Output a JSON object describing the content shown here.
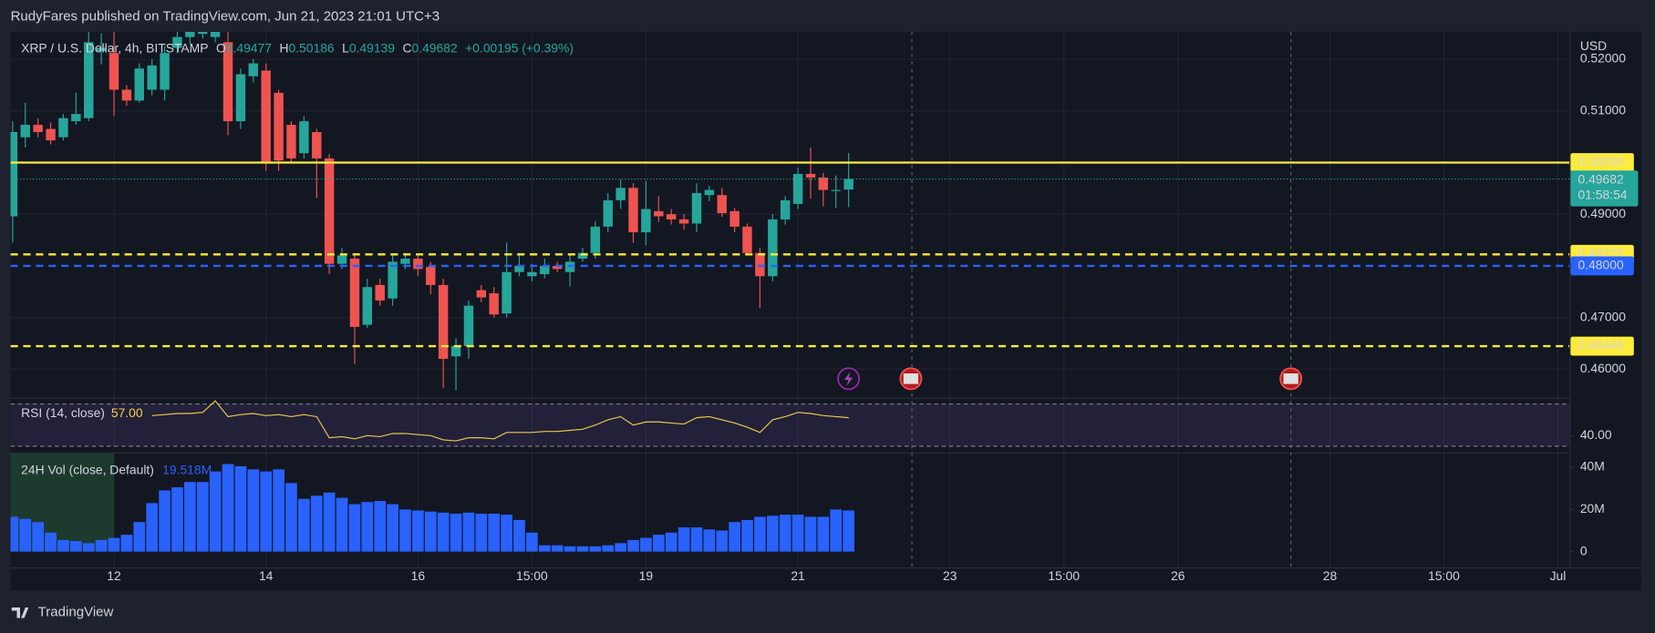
{
  "header": "RudyFares published on TradingView.com, Jun 21, 2023 21:01 UTC+3",
  "footer": "TradingView",
  "chart_data": {
    "type": "candlestick",
    "symbol": "XRP / U.S. Dollar, 4h, BITSTAMP",
    "ohlc_letters": [
      "O",
      "H",
      "L",
      "C"
    ],
    "change": "+0.00195 (+0.39%)",
    "currency": "USD",
    "countdown": "01:58:54",
    "grid": true,
    "up_color": "#26a69a",
    "down_color": "#ef5350",
    "x": [
      10.667,
      10.833,
      11,
      11.167,
      11.333,
      11.5,
      11.667,
      11.833,
      12,
      12.167,
      12.333,
      12.5,
      12.667,
      12.833,
      13,
      13.167,
      13.333,
      13.5,
      13.667,
      13.833,
      14,
      14.167,
      14.333,
      14.5,
      14.667,
      14.833,
      15,
      15.167,
      15.333,
      15.5,
      15.667,
      15.833,
      16,
      16.167,
      16.333,
      16.5,
      16.667,
      16.833,
      17,
      17.167,
      17.333,
      17.5,
      17.667,
      17.833,
      18,
      18.167,
      18.333,
      18.5,
      18.667,
      18.833,
      19,
      19.167,
      19.333,
      19.5,
      19.667,
      19.833,
      20,
      20.167,
      20.333,
      20.5,
      20.667,
      20.833,
      21,
      21.167,
      21.333,
      21.5,
      21.667
    ],
    "xlim": [
      10.639,
      31.153
    ],
    "xticks": [
      12,
      14,
      16,
      {
        "value": 17.5,
        "label": "15:00"
      },
      19,
      21,
      23,
      {
        "value": 24.5,
        "label": "15:00"
      },
      26,
      28,
      {
        "value": 29.5,
        "label": "15:00"
      },
      {
        "value": 31,
        "label": "Jul"
      }
    ],
    "open": [
      0.4896,
      0.5049,
      0.5073,
      0.5065,
      0.5049,
      0.508,
      0.5086,
      0.5216,
      0.5212,
      0.5141,
      0.512,
      0.5141,
      0.5141,
      0.5222,
      0.5243,
      0.5249,
      0.5243,
      0.5233,
      0.508,
      0.5167,
      0.5178,
      0.5135,
      0.5073,
      0.5018,
      0.5059,
      0.5008,
      0.4804,
      0.4814,
      0.4686,
      0.4763,
      0.4737,
      0.4804,
      0.4814,
      0.4798,
      0.4763,
      0.4625,
      0.4645,
      0.4753,
      0.4747,
      0.4708,
      0.4788,
      0.478,
      0.4784,
      0.48,
      0.4788,
      0.4814,
      0.4825,
      0.4876,
      0.4927,
      0.4951,
      0.4865,
      0.4906,
      0.49,
      0.489,
      0.4882,
      0.4937,
      0.4937,
      0.4906,
      0.4876,
      0.4825,
      0.478,
      0.489,
      0.492,
      0.4978,
      0.4971,
      0.4945,
      0.49477
    ],
    "high": [
      0.508,
      0.5116,
      0.5086,
      0.5078,
      0.5094,
      0.5135,
      0.5253,
      0.525,
      0.5253,
      0.515,
      0.5192,
      0.52,
      0.5225,
      0.5253,
      0.526,
      0.5265,
      0.5265,
      0.5253,
      0.5182,
      0.52,
      0.5192,
      0.5141,
      0.508,
      0.509,
      0.5065,
      0.5016,
      0.4835,
      0.4825,
      0.4775,
      0.4775,
      0.482,
      0.4825,
      0.482,
      0.4808,
      0.4775,
      0.466,
      0.4733,
      0.4763,
      0.4759,
      0.4845,
      0.4825,
      0.4804,
      0.4814,
      0.4808,
      0.482,
      0.4835,
      0.4886,
      0.4941,
      0.4967,
      0.496,
      0.4965,
      0.4935,
      0.491,
      0.49,
      0.496,
      0.4955,
      0.4951,
      0.4912,
      0.4882,
      0.4835,
      0.49,
      0.4935,
      0.499,
      0.5029,
      0.498,
      0.4975,
      0.50186
    ],
    "low": [
      0.4845,
      0.5029,
      0.5049,
      0.5035,
      0.5043,
      0.5073,
      0.508,
      0.519,
      0.509,
      0.511,
      0.5116,
      0.513,
      0.512,
      0.5212,
      0.523,
      0.524,
      0.5233,
      0.5053,
      0.5065,
      0.5155,
      0.4984,
      0.4984,
      0.5,
      0.5008,
      0.4931,
      0.4784,
      0.4794,
      0.461,
      0.468,
      0.4723,
      0.4723,
      0.4794,
      0.478,
      0.4745,
      0.4563,
      0.4559,
      0.462,
      0.473,
      0.47,
      0.47,
      0.478,
      0.477,
      0.4776,
      0.4788,
      0.476,
      0.4808,
      0.4814,
      0.4865,
      0.491,
      0.4845,
      0.484,
      0.4885,
      0.488,
      0.487,
      0.4865,
      0.4925,
      0.4895,
      0.4865,
      0.482,
      0.4718,
      0.477,
      0.488,
      0.491,
      0.493,
      0.4915,
      0.4912,
      0.49139
    ],
    "close": [
      0.5059,
      0.5073,
      0.5059,
      0.5043,
      0.5086,
      0.5094,
      0.5233,
      0.5222,
      0.5141,
      0.512,
      0.5182,
      0.5188,
      0.5212,
      0.5243,
      0.5253,
      0.5257,
      0.5253,
      0.508,
      0.5171,
      0.5192,
      0.4998,
      0.5004,
      0.5008,
      0.508,
      0.5008,
      0.4804,
      0.482,
      0.4682,
      0.4759,
      0.4733,
      0.4808,
      0.4814,
      0.4794,
      0.4763,
      0.462,
      0.4645,
      0.4723,
      0.4739,
      0.4706,
      0.4788,
      0.48,
      0.4788,
      0.48,
      0.4794,
      0.4808,
      0.4825,
      0.4876,
      0.4927,
      0.4951,
      0.4865,
      0.491,
      0.4896,
      0.489,
      0.4882,
      0.4941,
      0.4947,
      0.4902,
      0.4876,
      0.4825,
      0.478,
      0.489,
      0.4927,
      0.4978,
      0.4971,
      0.4947,
      0.4947,
      0.49682
    ],
    "ylim": [
      0.4549,
      0.5253
    ],
    "yticks": [
      {
        "value": 0.46,
        "label": "0.46000"
      },
      {
        "value": 0.47,
        "label": "0.47000"
      },
      {
        "value": 0.49,
        "label": "0.49000"
      },
      {
        "value": 0.51,
        "label": "0.51000"
      },
      {
        "value": 0.52,
        "label": "0.52000"
      }
    ],
    "price_lines": [
      {
        "value": 0.5,
        "label": "0.50000",
        "color": "#ffeb3b",
        "style": "solid"
      },
      {
        "value": 0.48222,
        "label": "0.48222",
        "color": "#ffeb3b",
        "style": "dashed"
      },
      {
        "value": 0.48,
        "label": "0.48000",
        "color": "#2962ff",
        "style": "dashed"
      },
      {
        "value": 0.46446,
        "label": "0.46446",
        "color": "#ffeb3b",
        "style": "dashed"
      }
    ],
    "rsi": {
      "name": "RSI (14, close)",
      "color": "#e9c94a",
      "value_label": "57.00",
      "values": [
        null,
        null,
        null,
        null,
        null,
        null,
        null,
        null,
        null,
        null,
        null,
        59,
        60,
        61,
        61,
        62,
        73,
        58,
        60,
        61,
        59,
        60,
        58,
        60,
        58,
        38,
        39,
        37,
        40,
        39,
        42,
        42,
        41,
        40,
        36,
        35,
        38,
        38,
        37,
        43,
        43,
        43,
        44,
        44,
        45,
        46,
        50,
        55,
        58,
        50,
        53,
        53,
        52,
        51,
        57,
        58,
        55,
        52,
        48,
        43,
        55,
        58,
        62,
        61,
        59,
        58,
        57
      ],
      "ylim": [
        25,
        75
      ],
      "yticks": [
        {
          "value": 40,
          "label": "40.00"
        }
      ],
      "bands": [
        70,
        30
      ]
    },
    "volume": {
      "name": "24H Vol (close, Default)",
      "color": "#2962ff",
      "value_label": "19.518M",
      "values": [
        16.5,
        15.5,
        14,
        9,
        5.5,
        5,
        4,
        5.5,
        6.5,
        8,
        14,
        23,
        29,
        30.5,
        33,
        33,
        38,
        41.5,
        40.5,
        39,
        38,
        39,
        32.5,
        25,
        26.5,
        28,
        25.5,
        22.5,
        23.5,
        24,
        22.5,
        20,
        19.5,
        19,
        18.5,
        18,
        18.5,
        18,
        18,
        17.5,
        15,
        9,
        3,
        3,
        2.5,
        2.5,
        2.5,
        3,
        4,
        5.5,
        6.5,
        8,
        9,
        11.5,
        11.5,
        10.5,
        10,
        14,
        15,
        16.5,
        17,
        17.5,
        17.5,
        16.5,
        16.5,
        20,
        19.518
      ],
      "ylim": [
        -7.5,
        46.5
      ],
      "yticks": [
        0,
        {
          "value": 20,
          "label": "20M"
        },
        {
          "value": 40,
          "label": "40M"
        }
      ]
    }
  }
}
